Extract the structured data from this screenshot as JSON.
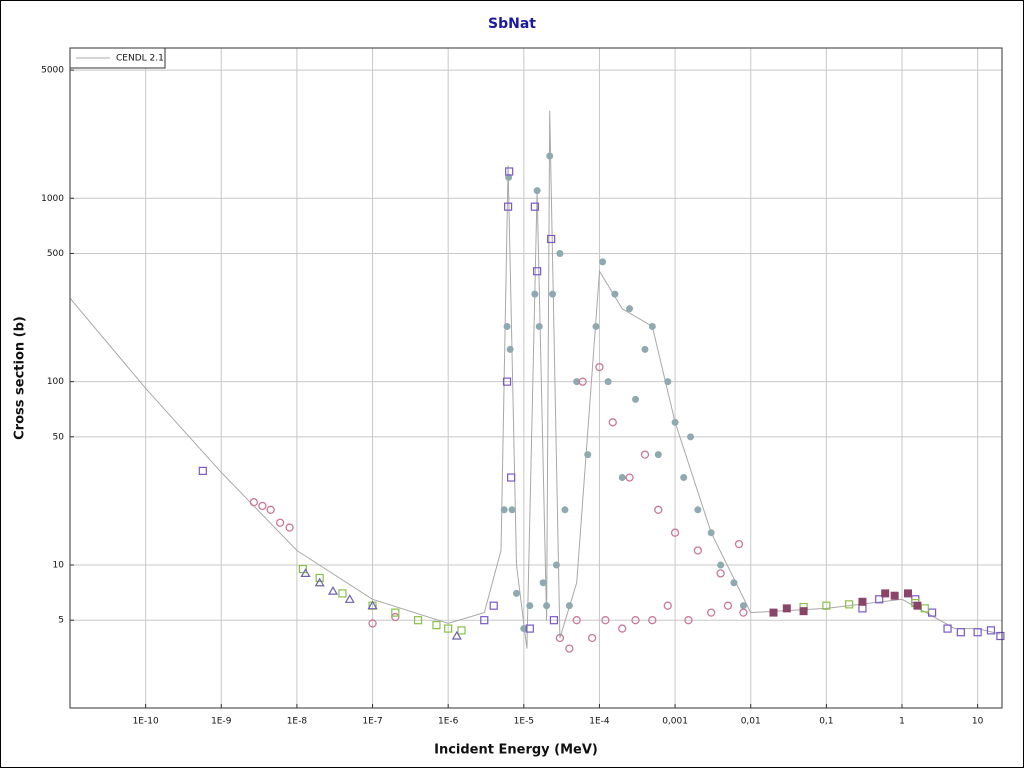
{
  "chart_data": {
    "type": "scatter",
    "title": "SbNat",
    "xlabel": "Incident Energy (MeV)",
    "ylabel": "Cross section (b)",
    "xscale": "log",
    "yscale": "log",
    "grid": true,
    "legend": "top-left",
    "xlim": [
      1e-11,
      21
    ],
    "ylim": [
      1.66,
      6600
    ],
    "xticks": [
      {
        "value": 1e-10,
        "label": "1E-10"
      },
      {
        "value": 1e-09,
        "label": "1E-9"
      },
      {
        "value": 1e-08,
        "label": "1E-8"
      },
      {
        "value": 1e-07,
        "label": "1E-7"
      },
      {
        "value": 1e-06,
        "label": "1E-6"
      },
      {
        "value": 1e-05,
        "label": "1E-5"
      },
      {
        "value": 0.0001,
        "label": "1E-4"
      },
      {
        "value": 0.001,
        "label": "0,001"
      },
      {
        "value": 0.01,
        "label": "0,01"
      },
      {
        "value": 0.1,
        "label": "0,1"
      },
      1,
      10
    ],
    "yticks": [
      5,
      10,
      50,
      100,
      500,
      1000,
      5000
    ],
    "series": [
      {
        "name": "CENDL 2.1",
        "mode": "line",
        "color": "#a8a8a8",
        "x": [
          1e-11,
          1e-10,
          1e-09,
          1e-08,
          1e-07,
          1e-06,
          3e-06,
          5e-06,
          6.2e-06,
          8e-06,
          1.1e-05,
          1.5e-05,
          2e-05,
          2.2e-05,
          3e-05,
          5e-05,
          0.0001,
          0.0002,
          0.0005,
          0.001,
          0.003,
          0.01,
          0.1,
          1,
          5,
          10,
          20
        ],
        "values": [
          285,
          92,
          32,
          12,
          6.5,
          4.8,
          5.5,
          12,
          1500,
          10,
          3.5,
          1100,
          5,
          3000,
          4,
          8,
          400,
          250,
          200,
          60,
          15,
          5.5,
          5.8,
          6.5,
          4.5,
          4.5,
          4.2
        ]
      },
      {
        "mode": "markers",
        "marker": "circle-filled",
        "color": "#8fa9b1",
        "x": [
          5.5e-06,
          6e-06,
          6.3e-06,
          6.6e-06,
          7e-06,
          8e-06,
          1e-05,
          1.2e-05,
          1.4e-05,
          1.5e-05,
          1.6e-05,
          1.8e-05,
          2e-05,
          2.2e-05,
          2.4e-05,
          2.7e-05,
          3e-05,
          3.5e-05,
          4e-05,
          5e-05,
          7e-05,
          9e-05,
          0.00011,
          0.00013,
          0.00016,
          0.0002,
          0.00025,
          0.0003,
          0.0004,
          0.0005,
          0.0006,
          0.0008,
          0.001,
          0.0013,
          0.0016,
          0.002,
          0.003,
          0.004,
          0.006,
          0.008
        ],
        "values": [
          20,
          200,
          1300,
          150,
          20,
          7,
          4.5,
          6,
          300,
          1100,
          200,
          8,
          6,
          1700,
          300,
          10,
          500,
          20,
          6,
          100,
          40,
          200,
          450,
          100,
          300,
          30,
          250,
          80,
          150,
          200,
          40,
          100,
          60,
          30,
          50,
          20,
          15,
          10,
          8,
          6
        ]
      },
      {
        "mode": "markers",
        "marker": "circle-open",
        "color": "#c8789a",
        "x": [
          2.7e-09,
          3.5e-09,
          4.5e-09,
          6e-09,
          8e-09,
          1e-07,
          2e-07,
          3e-05,
          4e-05,
          5e-05,
          6e-05,
          8e-05,
          0.0001,
          0.00012,
          0.00015,
          0.0002,
          0.00025,
          0.0003,
          0.0004,
          0.0005,
          0.0006,
          0.0008,
          0.001,
          0.0015,
          0.002,
          0.003,
          0.004,
          0.005,
          0.007,
          0.008
        ],
        "values": [
          22,
          21,
          20,
          17,
          16,
          4.8,
          5.2,
          4,
          3.5,
          5,
          100,
          4,
          120,
          5,
          60,
          4.5,
          30,
          5,
          40,
          5,
          20,
          6,
          15,
          5,
          12,
          5.5,
          9,
          6,
          13,
          5.5
        ]
      },
      {
        "mode": "markers",
        "marker": "square-open",
        "color": "#7a58c8",
        "x": [
          5.7e-10,
          3e-06,
          4e-06,
          6e-06,
          6.2e-06,
          6.4e-06,
          6.8e-06,
          1.2e-05,
          1.4e-05,
          1.5e-05,
          2.3e-05,
          2.5e-05,
          0.3,
          0.5,
          1.5,
          2.5,
          4,
          6,
          10,
          15,
          20
        ],
        "values": [
          32.6,
          5,
          6,
          100,
          900,
          1400,
          30,
          4.5,
          900,
          400,
          600,
          5,
          5.8,
          6.5,
          6.5,
          5.5,
          4.5,
          4.3,
          4.3,
          4.4,
          4.1
        ]
      },
      {
        "mode": "markers",
        "marker": "square-open",
        "color": "#8ac048",
        "x": [
          1.2e-08,
          2e-08,
          4e-08,
          1e-07,
          2e-07,
          4e-07,
          7e-07,
          1e-06,
          1.5e-06,
          0.05,
          0.1,
          0.2,
          1.5,
          2
        ],
        "values": [
          9.5,
          8.5,
          7,
          6,
          5.5,
          5,
          4.7,
          4.5,
          4.4,
          5.9,
          6,
          6.1,
          6.2,
          5.8
        ]
      },
      {
        "mode": "markers",
        "marker": "triangle-open",
        "color": "#7060b0",
        "x": [
          1.3e-08,
          2e-08,
          3e-08,
          5e-08,
          1e-07,
          1.3e-06
        ],
        "values": [
          9,
          8,
          7.2,
          6.5,
          6,
          4.1
        ]
      },
      {
        "mode": "markers",
        "marker": "square-filled",
        "color": "#8a4468",
        "x": [
          0.02,
          0.03,
          0.05,
          0.3,
          0.6,
          0.8,
          1.2,
          1.6
        ],
        "values": [
          5.5,
          5.8,
          5.6,
          6.3,
          7,
          6.8,
          7,
          6
        ]
      }
    ]
  }
}
